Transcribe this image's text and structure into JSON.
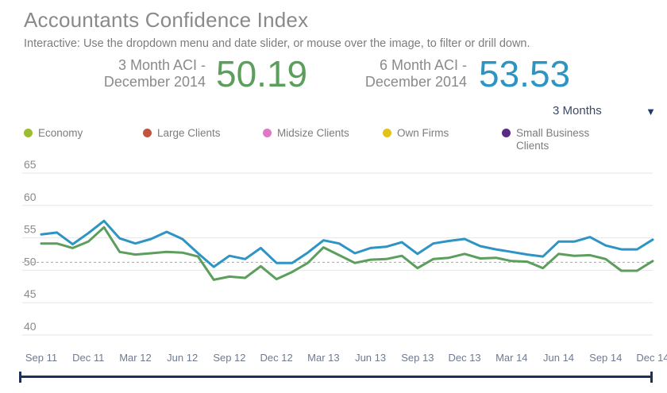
{
  "header": {
    "title": "Accountants Confidence Index",
    "subtitle": "Interactive: Use the dropdown menu and date slider, or mouse over the image, to filter or drill down."
  },
  "kpis": {
    "three_month": {
      "label_line1": "3 Month ACI -",
      "label_line2": "December 2014",
      "value": "50.19",
      "color": "#5c9e5c"
    },
    "six_month": {
      "label_line1": "6 Month ACI -",
      "label_line2": "December 2014",
      "value": "53.53",
      "color": "#2e94c4"
    }
  },
  "controls": {
    "range_select": {
      "selected": "3 Months",
      "arrow_icon": "triangle-down-icon"
    }
  },
  "legend": [
    {
      "label": "Economy",
      "color": "#9cbd2d"
    },
    {
      "label": "Large Clients",
      "color": "#c0543f"
    },
    {
      "label": "Midsize Clients",
      "color": "#df78c8"
    },
    {
      "label": "Own Firms",
      "color": "#e3c21c"
    },
    {
      "label": "Small Business\nClients",
      "color": "#5b2a87"
    }
  ],
  "chart_data": {
    "type": "line",
    "title": "",
    "xlabel": "",
    "ylabel": "",
    "ylim": [
      40,
      65
    ],
    "yticks": [
      40,
      45,
      50,
      55,
      60,
      65
    ],
    "x_tick_labels": [
      "Sep 11",
      "Dec 11",
      "Mar 12",
      "Jun 12",
      "Sep 12",
      "Dec 12",
      "Mar 13",
      "Jun 13",
      "Sep 13",
      "Dec 13",
      "Mar 14",
      "Jun 14",
      "Sep 14",
      "Dec 14"
    ],
    "x": [
      "Sep 11",
      "Oct 11",
      "Nov 11",
      "Dec 11",
      "Jan 12",
      "Feb 12",
      "Mar 12",
      "Apr 12",
      "May 12",
      "Jun 12",
      "Jul 12",
      "Aug 12",
      "Sep 12",
      "Oct 12",
      "Nov 12",
      "Dec 12",
      "Jan 13",
      "Feb 13",
      "Mar 13",
      "Apr 13",
      "May 13",
      "Jun 13",
      "Jul 13",
      "Aug 13",
      "Sep 13",
      "Oct 13",
      "Nov 13",
      "Dec 13",
      "Jan 14",
      "Feb 14",
      "Mar 14",
      "Apr 14",
      "May 14",
      "Jun 14",
      "Jul 14",
      "Aug 14",
      "Sep 14",
      "Oct 14",
      "Nov 14",
      "Dec 14"
    ],
    "reference_line": 50,
    "series": [
      {
        "name": "6 Month ACI",
        "color": "#2e94c4",
        "values": [
          54.3,
          54.6,
          52.8,
          54.5,
          56.4,
          53.7,
          52.9,
          53.6,
          54.7,
          53.6,
          51.4,
          49.3,
          51.0,
          50.5,
          52.2,
          49.9,
          49.9,
          51.5,
          53.4,
          52.9,
          51.4,
          52.2,
          52.4,
          53.1,
          51.3,
          52.9,
          53.3,
          53.6,
          52.5,
          52.0,
          51.6,
          51.2,
          50.9,
          53.2,
          53.2,
          53.9,
          52.6,
          52.0,
          52.0,
          53.5
        ]
      },
      {
        "name": "3 Month ACI",
        "color": "#5c9e5c",
        "values": [
          52.9,
          52.9,
          52.2,
          53.2,
          55.4,
          51.6,
          51.2,
          51.4,
          51.6,
          51.5,
          50.9,
          47.3,
          47.8,
          47.6,
          49.4,
          47.4,
          48.5,
          49.9,
          52.3,
          51.1,
          49.9,
          50.4,
          50.5,
          51.0,
          49.1,
          50.5,
          50.7,
          51.3,
          50.6,
          50.7,
          50.2,
          50.1,
          49.1,
          51.3,
          51.0,
          51.1,
          50.5,
          48.7,
          48.7,
          50.2
        ]
      }
    ]
  }
}
